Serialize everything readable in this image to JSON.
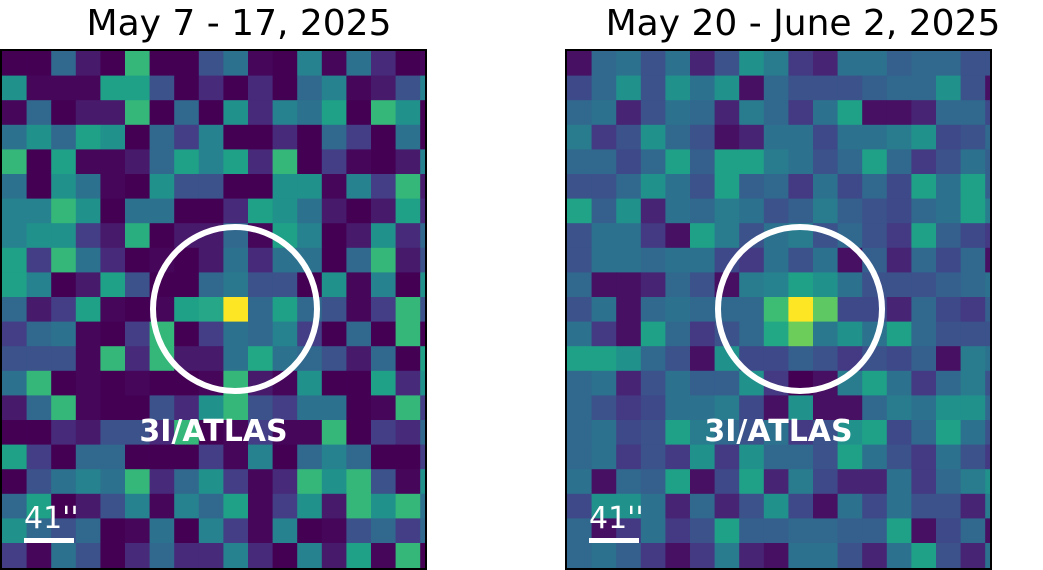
{
  "panels": [
    {
      "title": "May 7 - 17, 2025",
      "seed": 7,
      "palette": [
        "#440154",
        "#440154",
        "#440154",
        "#46075a",
        "#46075a",
        "#481a6c",
        "#472a7a",
        "#433e85",
        "#3b528b",
        "#31688e",
        "#2c728e",
        "#26828e",
        "#21918c",
        "#1fa187",
        "#35b779"
      ],
      "peak_color": "#fde725",
      "source_cells": [
        {
          "dc": 0,
          "dr": 0,
          "color": "#fde725"
        },
        {
          "dc": -1,
          "dr": 0,
          "color": "#26a788"
        },
        {
          "dc": 1,
          "dr": 0,
          "color": "#31688e"
        },
        {
          "dc": 0,
          "dr": -1,
          "color": "#2a788e"
        },
        {
          "dc": 0,
          "dr": 1,
          "color": "#2c728e"
        },
        {
          "dc": 1,
          "dr": 2,
          "color": "#22a884"
        }
      ],
      "bright_cells": [
        {
          "c": 18,
          "r": 6,
          "color": "#b5de2b"
        },
        {
          "c": 5,
          "r": 7,
          "color": "#29af7f"
        }
      ],
      "target_label": "3I/ATLAS",
      "scale_text": "41''"
    },
    {
      "title": "May 20 - June 2, 2025",
      "seed": 20,
      "palette": [
        "#471063",
        "#482475",
        "#443983",
        "#3e4989",
        "#3b528b",
        "#3b528b",
        "#355f8d",
        "#31688e",
        "#31688e",
        "#2c728e",
        "#2c728e",
        "#287c8e",
        "#21918c",
        "#1fa187"
      ],
      "peak_color": "#fde725",
      "source_cells": [
        {
          "dc": 0,
          "dr": 0,
          "color": "#fde725"
        },
        {
          "dc": -1,
          "dr": 0,
          "color": "#3dbc74"
        },
        {
          "dc": 1,
          "dr": 0,
          "color": "#5ec962"
        },
        {
          "dc": 0,
          "dr": -1,
          "color": "#1fa187"
        },
        {
          "dc": 0,
          "dr": 1,
          "color": "#6ccd5a"
        },
        {
          "dc": -1,
          "dr": 1,
          "color": "#22a884"
        },
        {
          "dc": 1,
          "dr": -1,
          "color": "#21918c"
        },
        {
          "dc": -1,
          "dr": -1,
          "color": "#26828e"
        },
        {
          "dc": 1,
          "dr": 1,
          "color": "#2a788e"
        },
        {
          "dc": 0,
          "dr": 3,
          "color": "#440154"
        }
      ],
      "bright_cells": [
        {
          "c": 0,
          "r": 6,
          "color": "#20a386"
        },
        {
          "c": 16,
          "r": 6,
          "color": "#1fa187"
        }
      ],
      "target_label": "3I/ATLAS",
      "scale_text": "41''"
    }
  ]
}
